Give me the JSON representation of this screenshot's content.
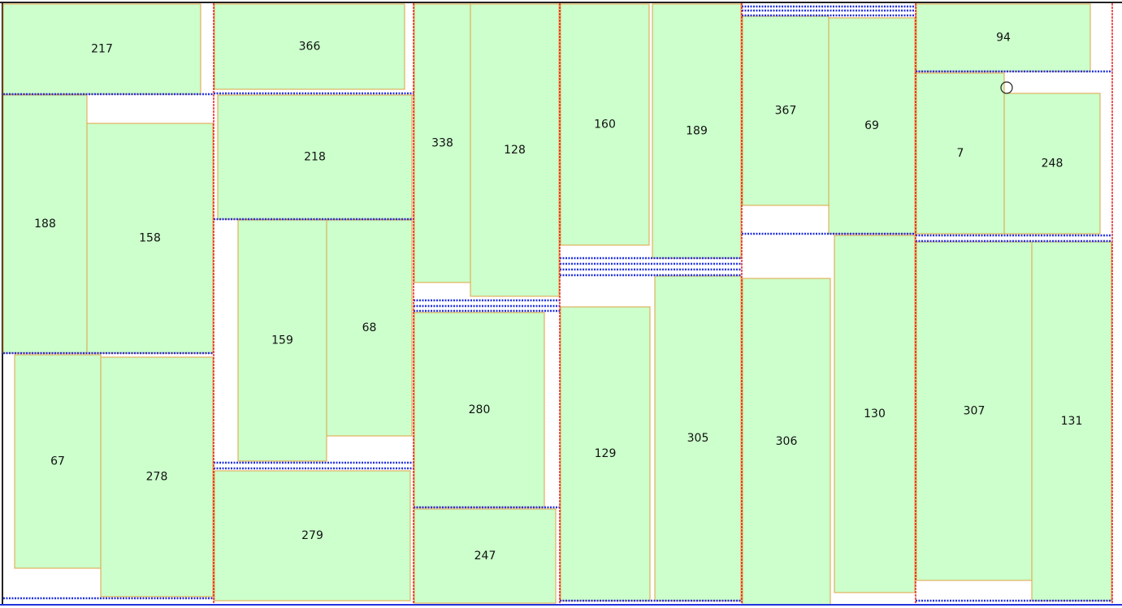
{
  "pieces": [
    217,
    188,
    158,
    67,
    278,
    366,
    218,
    159,
    68,
    279,
    338,
    128,
    280,
    247,
    160,
    189,
    129,
    305,
    367,
    69,
    306,
    130,
    94,
    7,
    248,
    307,
    131
  ]
}
